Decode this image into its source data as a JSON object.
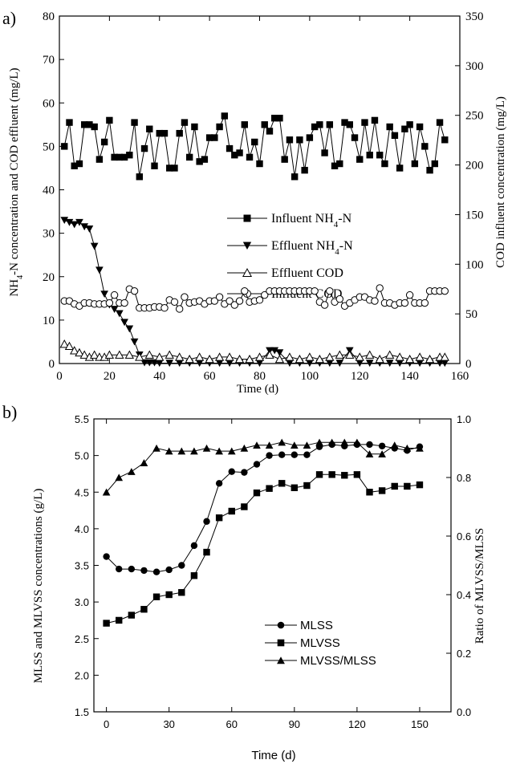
{
  "panel_a": {
    "panel_label": "a)",
    "chart_data": {
      "type": "line",
      "xlabel": "Time (d)",
      "ylabel_left": "NH4-N concentration and COD effluent (mg/L)",
      "ylabel_right": "COD influent concentration (mg/L)",
      "xlim": [
        0,
        160
      ],
      "ylim_left": [
        0,
        80
      ],
      "ylim_right": [
        0,
        350
      ],
      "x_ticks": [
        0,
        20,
        40,
        60,
        80,
        100,
        120,
        140,
        160
      ],
      "y_ticks_left": [
        0,
        10,
        20,
        30,
        40,
        50,
        60,
        70,
        80
      ],
      "y_ticks_right": [
        0,
        50,
        100,
        150,
        200,
        250,
        300,
        350
      ],
      "grid": false,
      "legend_position": "center-right",
      "legend": [
        "Influent NH4-N",
        "Effluent NH4-N",
        "Effluent COD",
        "Influent COD"
      ],
      "series": [
        {
          "name": "Influent NH4-N",
          "axis": "left",
          "marker": "square-filled",
          "x": [
            2,
            4,
            6,
            8,
            10,
            12,
            14,
            16,
            18,
            20,
            22,
            24,
            26,
            28,
            30,
            32,
            34,
            36,
            38,
            40,
            42,
            44,
            46,
            48,
            50,
            52,
            54,
            56,
            58,
            60,
            62,
            64,
            66,
            68,
            70,
            72,
            74,
            76,
            78,
            80,
            82,
            84,
            86,
            88,
            90,
            92,
            94,
            96,
            98,
            100,
            102,
            104,
            106,
            108,
            110,
            112,
            114,
            116,
            118,
            120,
            122,
            124,
            126,
            128,
            130,
            132,
            134,
            136,
            138,
            140,
            142,
            144,
            146,
            148,
            150,
            152,
            154
          ],
          "y": [
            50,
            55.5,
            45.5,
            46,
            55,
            55,
            54.5,
            47,
            51,
            56,
            47.5,
            47.5,
            47.5,
            48,
            55.5,
            43,
            49.5,
            54,
            45.5,
            53,
            53,
            45,
            45,
            53,
            55.5,
            47.5,
            54.5,
            46.5,
            47,
            52,
            52,
            54.5,
            57,
            49.5,
            48,
            48.5,
            55,
            47.5,
            51,
            46,
            55,
            53.5,
            56.5,
            56.5,
            47,
            51.5,
            43,
            51.5,
            44.5,
            52,
            54.5,
            55,
            48.5,
            55,
            45.5,
            46,
            55.5,
            55,
            52,
            47,
            55.5,
            48,
            56,
            48,
            46,
            54.5,
            52.5,
            45,
            54,
            55,
            46,
            54.5,
            50,
            44.5,
            46,
            55.5,
            51.5
          ]
        },
        {
          "name": "Effluent NH4-N",
          "axis": "left",
          "marker": "triangle-down-filled",
          "x": [
            2,
            4,
            6,
            8,
            10,
            12,
            14,
            16,
            18,
            20,
            22,
            24,
            26,
            28,
            30,
            32,
            34,
            36,
            38,
            40,
            44,
            48,
            52,
            56,
            60,
            64,
            68,
            72,
            76,
            80,
            84,
            86,
            88,
            92,
            96,
            100,
            104,
            108,
            112,
            116,
            120,
            124,
            128,
            132,
            136,
            140,
            144,
            148,
            152,
            154
          ],
          "y": [
            33,
            32.5,
            32,
            32.5,
            31.5,
            31,
            27,
            21.5,
            16,
            13.5,
            12.5,
            11.5,
            9.5,
            8,
            5,
            2,
            0.2,
            0.2,
            0.2,
            0.1,
            0.1,
            0.1,
            0.1,
            0.1,
            0.1,
            0.1,
            0.1,
            0.1,
            0.1,
            0.1,
            3,
            3,
            2.5,
            0.1,
            0.1,
            0.1,
            0.1,
            0.1,
            0.1,
            3,
            0.1,
            0.1,
            0.1,
            0.1,
            0.1,
            0.1,
            0.1,
            0.1,
            0.1,
            0.1
          ]
        },
        {
          "name": "Effluent COD",
          "axis": "left",
          "marker": "triangle-up-open",
          "x": [
            2,
            4,
            6,
            8,
            10,
            12,
            14,
            16,
            18,
            20,
            24,
            28,
            32,
            36,
            40,
            44,
            48,
            52,
            56,
            60,
            64,
            68,
            72,
            76,
            80,
            84,
            88,
            92,
            96,
            100,
            104,
            108,
            112,
            116,
            120,
            124,
            128,
            132,
            136,
            140,
            144,
            148,
            152,
            154
          ],
          "y": [
            4.5,
            4,
            3,
            2.5,
            2,
            1.5,
            2,
            1.5,
            1.5,
            2,
            2,
            2,
            1.5,
            2,
            1.5,
            2,
            1.5,
            1,
            1.5,
            1,
            1.5,
            1.5,
            1,
            1,
            1.5,
            2,
            1,
            1.5,
            1,
            1.5,
            1,
            1.5,
            2,
            2,
            1.5,
            2,
            1,
            2,
            1.5,
            1,
            1.5,
            1,
            1.5,
            1.5
          ]
        },
        {
          "name": "Influent COD",
          "axis": "right",
          "marker": "circle-open",
          "x": [
            2,
            4,
            6,
            8,
            10,
            12,
            14,
            16,
            18,
            20,
            22,
            24,
            26,
            28,
            30,
            32,
            34,
            36,
            38,
            40,
            42,
            44,
            46,
            48,
            50,
            52,
            54,
            56,
            58,
            60,
            62,
            64,
            66,
            68,
            70,
            72,
            74,
            76,
            78,
            80,
            82,
            84,
            86,
            88,
            90,
            92,
            94,
            96,
            98,
            100,
            102,
            104,
            106,
            108,
            110,
            112,
            114,
            116,
            118,
            120,
            122,
            124,
            126,
            128,
            130,
            132,
            134,
            136,
            138,
            140,
            142,
            144,
            146,
            148,
            150,
            152,
            154
          ],
          "y": [
            63,
            63,
            60,
            58,
            61,
            61,
            60,
            60,
            60,
            61,
            69,
            61,
            61,
            75,
            73,
            56,
            56,
            56,
            57,
            57,
            56,
            64,
            62,
            55,
            67,
            61,
            62,
            63,
            60,
            63,
            63,
            67,
            60,
            63,
            59,
            63,
            73,
            62,
            63,
            64,
            69,
            73,
            73,
            73,
            73,
            73,
            73,
            73,
            73,
            73,
            73,
            62,
            59,
            73,
            62,
            65,
            58,
            61,
            64,
            67,
            67,
            64,
            63,
            76,
            61,
            61,
            59,
            61,
            61,
            69,
            61,
            61,
            61,
            73,
            73,
            73,
            73
          ]
        }
      ]
    }
  },
  "panel_b": {
    "panel_label": "b)",
    "chart_data": {
      "type": "line",
      "xlabel": "Time (d)",
      "ylabel_left": "MLSS and MLVSS concentrations (g/L)",
      "ylabel_right": "Ratio of MLVSS/MLSS",
      "xlim": [
        -6,
        165
      ],
      "ylim_left": [
        1.5,
        5.5
      ],
      "ylim_right": [
        0.0,
        1.0
      ],
      "x_ticks": [
        0,
        30,
        60,
        90,
        120,
        150
      ],
      "y_ticks_left": [
        "1.5",
        "2.0",
        "2.5",
        "3.0",
        "3.5",
        "4.0",
        "4.5",
        "5.0",
        "5.5"
      ],
      "y_ticks_right": [
        "0.0",
        "0.2",
        "0.4",
        "0.6",
        "0.8",
        "1.0"
      ],
      "grid": false,
      "legend_position": "center-right",
      "legend": [
        "MLSS",
        "MLVSS",
        "MLVSS/MLSS"
      ],
      "series": [
        {
          "name": "MLSS",
          "axis": "left",
          "marker": "circle-filled",
          "x": [
            0,
            6,
            12,
            18,
            24,
            30,
            36,
            42,
            48,
            54,
            60,
            66,
            72,
            78,
            84,
            90,
            96,
            102,
            108,
            114,
            120,
            126,
            132,
            138,
            144,
            150
          ],
          "y": [
            3.62,
            3.45,
            3.45,
            3.43,
            3.41,
            3.44,
            3.5,
            3.77,
            4.1,
            4.62,
            4.78,
            4.77,
            4.88,
            5.0,
            5.01,
            5.01,
            5.01,
            5.12,
            5.15,
            5.13,
            5.15,
            5.15,
            5.13,
            5.1,
            5.07,
            5.12
          ]
        },
        {
          "name": "MLVSS",
          "axis": "left",
          "marker": "square-filled",
          "x": [
            0,
            6,
            12,
            18,
            24,
            30,
            36,
            42,
            48,
            54,
            60,
            66,
            72,
            78,
            84,
            90,
            96,
            102,
            108,
            114,
            120,
            126,
            132,
            138,
            144,
            150
          ],
          "y": [
            2.71,
            2.75,
            2.82,
            2.9,
            3.07,
            3.1,
            3.13,
            3.36,
            3.68,
            4.15,
            4.24,
            4.3,
            4.49,
            4.55,
            4.62,
            4.56,
            4.59,
            4.74,
            4.74,
            4.73,
            4.74,
            4.5,
            4.52,
            4.58,
            4.58,
            4.6
          ]
        },
        {
          "name": "MLVSS/MLSS",
          "axis": "right",
          "marker": "triangle-up-filled",
          "x": [
            0,
            6,
            12,
            18,
            24,
            30,
            36,
            42,
            48,
            54,
            60,
            66,
            72,
            78,
            84,
            90,
            96,
            102,
            108,
            114,
            120,
            126,
            132,
            138,
            144,
            150
          ],
          "y": [
            0.75,
            0.8,
            0.82,
            0.85,
            0.9,
            0.89,
            0.89,
            0.89,
            0.9,
            0.89,
            0.89,
            0.9,
            0.91,
            0.91,
            0.92,
            0.91,
            0.91,
            0.92,
            0.92,
            0.92,
            0.92,
            0.88,
            0.88,
            0.91,
            0.9,
            0.9
          ]
        }
      ]
    }
  }
}
